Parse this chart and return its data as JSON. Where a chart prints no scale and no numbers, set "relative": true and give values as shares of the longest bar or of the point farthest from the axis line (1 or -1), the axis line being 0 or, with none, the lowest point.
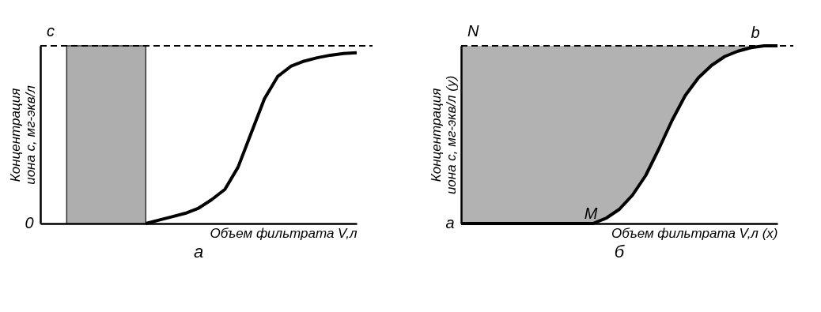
{
  "chart_data": [
    {
      "type": "line",
      "title": "а",
      "xlabel": "Объем фильтрата V,л",
      "ylabel": "Концентрация иона c, мг-экв/л",
      "relative": true,
      "categories": [
        null,
        null,
        null,
        null,
        null,
        null,
        null,
        null,
        null,
        null,
        null,
        null,
        null,
        null,
        null,
        null,
        null,
        null,
        null,
        null,
        null,
        null,
        null,
        null,
        null
      ],
      "series": [
        {
          "color": "#000000",
          "values": [
            null,
            null,
            null,
            null,
            null,
            null,
            null,
            null,
            0,
            0.02,
            0.04,
            0.06,
            0.09,
            0.14,
            0.2,
            0.33,
            0.53,
            0.73,
            0.86,
            0.92,
            0.95,
            0.97,
            0.985,
            0.995,
            1
          ]
        }
      ],
      "ref_lines": [
        {
          "axis": "y",
          "value": 1.04,
          "label": "c",
          "line_style": "dashed"
        }
      ],
      "annotations": [
        "0"
      ]
    },
    {
      "type": "line",
      "title": "б",
      "xlabel": "Объем фильтрата V,л (x)",
      "ylabel": "Концентрация иона c, мг-экв/л (y)",
      "relative": true,
      "categories": [
        null,
        null,
        null,
        null,
        null,
        null,
        null,
        null,
        null,
        null,
        null,
        null,
        null,
        null,
        null,
        null,
        null,
        null,
        null,
        null,
        null,
        null,
        null,
        null,
        null
      ],
      "series": [
        {
          "color": "#000000",
          "values": [
            0,
            0,
            0,
            0,
            0,
            0,
            0,
            0,
            0,
            0,
            0,
            0.03,
            0.08,
            0.16,
            0.27,
            0.42,
            0.58,
            0.72,
            0.82,
            0.89,
            0.94,
            0.97,
            0.99,
            1,
            1
          ],
          "lower": [
            0,
            0,
            0,
            0,
            0,
            0,
            0,
            0,
            0,
            0,
            0,
            0.03,
            0.08,
            0.16,
            0.27,
            0.42,
            0.58,
            0.72,
            0.82,
            0.89,
            0.94,
            0.97,
            0.99,
            1,
            1
          ],
          "upper": [
            1,
            1,
            1,
            1,
            1,
            1,
            1,
            1,
            1,
            1,
            1,
            1,
            1,
            1,
            1,
            1,
            1,
            1,
            1,
            1,
            1,
            1,
            1,
            1,
            1
          ]
        }
      ],
      "ref_lines": [
        {
          "axis": "y",
          "value": 1,
          "label": "N",
          "line_style": "dashed"
        }
      ],
      "annotations": [
        {
          "text": "b",
          "y": 1
        },
        {
          "text": "M",
          "y": 0
        },
        "a"
      ]
    }
  ]
}
